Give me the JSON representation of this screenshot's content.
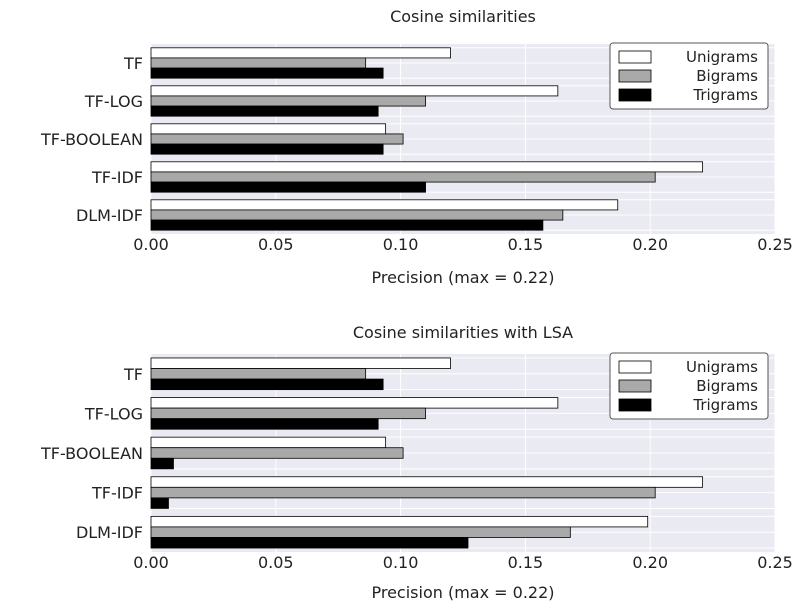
{
  "chart_data": [
    {
      "type": "bar",
      "orientation": "horizontal",
      "title": "Cosine similarities",
      "xlabel": "Precision (max = 0.22)",
      "ylabel": "",
      "xlim": [
        0,
        0.25
      ],
      "x_ticks": [
        "0.00",
        "0.05",
        "0.10",
        "0.15",
        "0.20",
        "0.25"
      ],
      "categories": [
        "TF",
        "TF-LOG",
        "TF-BOOLEAN",
        "TF-IDF",
        "DLM-IDF"
      ],
      "series": [
        {
          "name": "Unigrams",
          "color": "#ffffff",
          "values": [
            0.12,
            0.163,
            0.094,
            0.221,
            0.187
          ]
        },
        {
          "name": "Bigrams",
          "color": "#a9a9a9",
          "values": [
            0.086,
            0.11,
            0.101,
            0.202,
            0.165
          ]
        },
        {
          "name": "Trigrams",
          "color": "#000000",
          "values": [
            0.093,
            0.091,
            0.093,
            0.11,
            0.157
          ]
        }
      ],
      "grid": true,
      "legend_position": "top-right"
    },
    {
      "type": "bar",
      "orientation": "horizontal",
      "title": "Cosine similarities with LSA",
      "xlabel": "Precision (max = 0.22)",
      "ylabel": "",
      "xlim": [
        0,
        0.25
      ],
      "x_ticks": [
        "0.00",
        "0.05",
        "0.10",
        "0.15",
        "0.20",
        "0.25"
      ],
      "categories": [
        "TF",
        "TF-LOG",
        "TF-BOOLEAN",
        "TF-IDF",
        "DLM-IDF"
      ],
      "series": [
        {
          "name": "Unigrams",
          "color": "#ffffff",
          "values": [
            0.12,
            0.163,
            0.094,
            0.221,
            0.199
          ]
        },
        {
          "name": "Bigrams",
          "color": "#a9a9a9",
          "values": [
            0.086,
            0.11,
            0.101,
            0.202,
            0.168
          ]
        },
        {
          "name": "Trigrams",
          "color": "#000000",
          "values": [
            0.093,
            0.091,
            0.009,
            0.007,
            0.127
          ]
        }
      ],
      "grid": true,
      "legend_position": "top-right"
    }
  ],
  "colors": {
    "plot_background": "#eaeaf2",
    "grid": "#ffffff",
    "bar_edge": "#000000"
  }
}
